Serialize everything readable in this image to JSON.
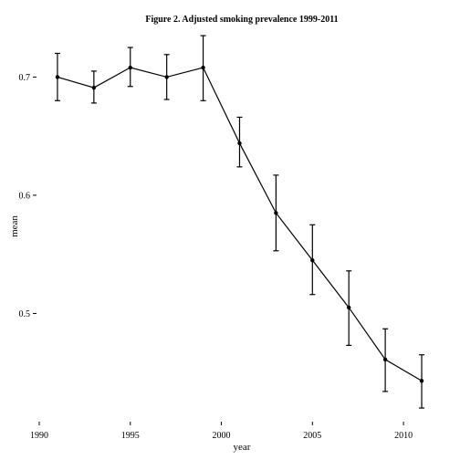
{
  "chart_data": {
    "type": "line",
    "title": "Figure 2. Adjusted smoking prevalence 1999-2011",
    "xlabel": "year",
    "ylabel": "mean",
    "xlim": [
      1990,
      2011.5
    ],
    "ylim": [
      0.41,
      0.742
    ],
    "xticks": [
      1990,
      1995,
      2000,
      2005,
      2010
    ],
    "yticks": [
      0.5,
      0.6,
      0.7
    ],
    "ytick_labels": [
      "0.5",
      "0.6",
      "0.7"
    ],
    "grid": false,
    "error_bars": true,
    "series": [
      {
        "x": [
          1991,
          1993,
          1995,
          1997,
          1999,
          2001,
          2003,
          2005,
          2007,
          2009,
          2011
        ],
        "y": [
          0.7,
          0.691,
          0.708,
          0.7,
          0.708,
          0.644,
          0.585,
          0.545,
          0.505,
          0.461,
          0.443
        ],
        "lower": [
          0.68,
          0.678,
          0.692,
          0.681,
          0.68,
          0.624,
          0.553,
          0.516,
          0.473,
          0.434,
          0.42
        ],
        "upper": [
          0.72,
          0.705,
          0.725,
          0.719,
          0.735,
          0.666,
          0.617,
          0.575,
          0.536,
          0.487,
          0.465
        ]
      }
    ]
  }
}
